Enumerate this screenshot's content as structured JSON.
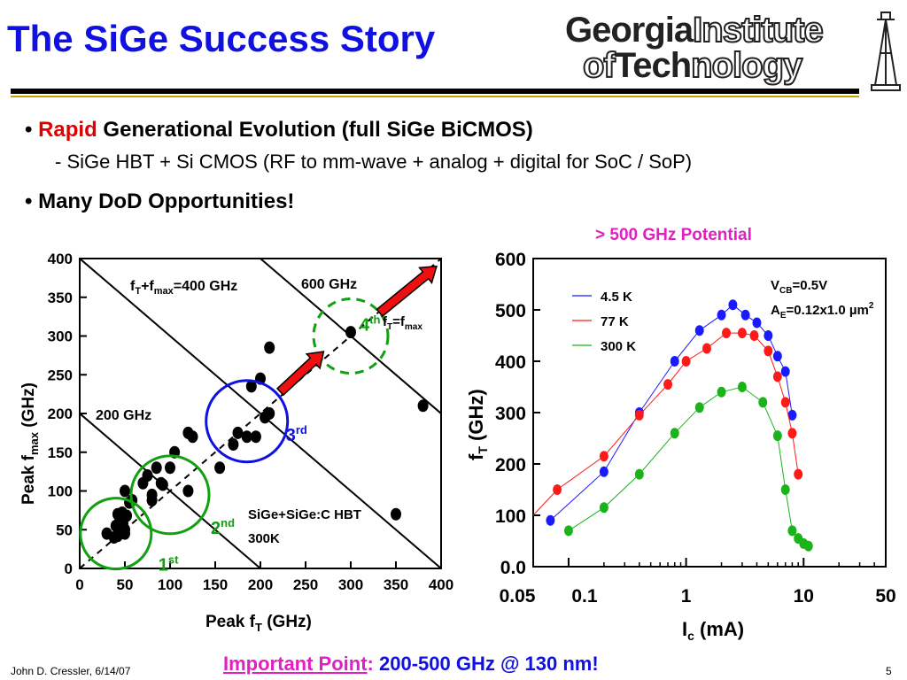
{
  "title": "The SiGe Success Story",
  "logo": {
    "line1_bold": "Georgia",
    "line1_outline": "Institute",
    "line2_outline_a": "of",
    "line2_bold": "Tech",
    "line2_outline_b": "nology"
  },
  "bullets": [
    {
      "marker": "•",
      "highlight": "Rapid",
      "text": "Generational Evolution (full SiGe BiCMOS)"
    },
    {
      "marker": "•",
      "text": "Many DoD Opportunities!"
    }
  ],
  "sub_bullet": "- SiGe HBT + Si CMOS (RF to mm-wave + analog + digital for SoC / SoP)",
  "potential_label": "> 500 GHz Potential",
  "important": {
    "lead": "Important Point",
    "colon": ":",
    "text": "200-500 GHz @ 130 nm!"
  },
  "footer": {
    "author": "John D. Cressler, 6/14/07",
    "page": "5"
  },
  "colors": {
    "title": "#1010e0",
    "highlight": "#e00000",
    "magenta": "#e020c0",
    "green": "#10a010",
    "blue": "#1010e0",
    "arrow": "#ee1010"
  },
  "chart_data": [
    {
      "type": "scatter",
      "xlabel": "Peak fT (GHz)",
      "ylabel": "Peak fmax (GHz)",
      "xlim": [
        0,
        400
      ],
      "ylim": [
        0,
        400
      ],
      "xticks": [
        0,
        50,
        100,
        150,
        200,
        250,
        300,
        350,
        400
      ],
      "yticks": [
        0,
        50,
        100,
        150,
        200,
        250,
        300,
        350,
        400
      ],
      "annotations": {
        "sum_line": "fT+fmax=400 GHz",
        "line_600": "600 GHz",
        "line_200": "200 GHz",
        "equality_pre": "fT=fmax",
        "device": "SiGe+SiGe:C HBT",
        "temp": "300K"
      },
      "generations": [
        {
          "num": "1",
          "sup": "st",
          "center": [
            40,
            45
          ]
        },
        {
          "num": "2",
          "sup": "nd",
          "center": [
            100,
            95
          ]
        },
        {
          "num": "3",
          "sup": "rd",
          "center": [
            185,
            190
          ]
        },
        {
          "num": "4",
          "sup": "th",
          "center": [
            300,
            300
          ]
        }
      ],
      "points": [
        [
          30,
          45
        ],
        [
          38,
          40
        ],
        [
          40,
          55
        ],
        [
          42,
          70
        ],
        [
          44,
          60
        ],
        [
          45,
          48
        ],
        [
          47,
          72
        ],
        [
          48,
          58
        ],
        [
          50,
          50
        ],
        [
          52,
          68
        ],
        [
          42,
          42
        ],
        [
          50,
          45
        ],
        [
          55,
          85
        ],
        [
          50,
          100
        ],
        [
          58,
          88
        ],
        [
          70,
          110
        ],
        [
          75,
          120
        ],
        [
          80,
          95
        ],
        [
          85,
          130
        ],
        [
          80,
          88
        ],
        [
          92,
          108
        ],
        [
          90,
          110
        ],
        [
          100,
          130
        ],
        [
          120,
          175
        ],
        [
          125,
          170
        ],
        [
          105,
          150
        ],
        [
          120,
          100
        ],
        [
          155,
          130
        ],
        [
          170,
          160
        ],
        [
          175,
          175
        ],
        [
          185,
          170
        ],
        [
          190,
          235
        ],
        [
          200,
          245
        ],
        [
          205,
          195
        ],
        [
          195,
          170
        ],
        [
          210,
          200
        ],
        [
          210,
          285
        ],
        [
          300,
          305
        ],
        [
          350,
          70
        ],
        [
          380,
          210
        ]
      ]
    },
    {
      "type": "line",
      "xlabel": "Ic (mA)",
      "ylabel": "fT (GHz)",
      "xscale": "log",
      "xlim": [
        0.05,
        50
      ],
      "ylim": [
        0,
        600
      ],
      "xticks": [
        "0.05",
        "0.1",
        "1",
        "10",
        "50"
      ],
      "yticks": [
        "0.0",
        "100",
        "200",
        "300",
        "400",
        "500",
        "600"
      ],
      "conditions": {
        "vcb": "VCB=0.5V",
        "ae": "AE=0.12x1.0 µm2"
      },
      "series": [
        {
          "name": "4.5 K",
          "color": "#1a1aff",
          "x": [
            0.07,
            0.2,
            0.4,
            0.8,
            1.3,
            2.0,
            2.5,
            3.2,
            4.0,
            5.0,
            6.0,
            7.0,
            8.0
          ],
          "y": [
            90,
            185,
            300,
            400,
            460,
            490,
            510,
            490,
            475,
            450,
            410,
            380,
            295
          ]
        },
        {
          "name": "77 K",
          "color": "#ff1a1a",
          "x": [
            0.08,
            0.2,
            0.4,
            0.7,
            1.0,
            1.5,
            2.2,
            3.0,
            3.8,
            5.0,
            6.0,
            7.0,
            8.0,
            9.0
          ],
          "y": [
            150,
            215,
            295,
            355,
            400,
            425,
            455,
            455,
            450,
            420,
            370,
            320,
            260,
            180
          ]
        },
        {
          "name": "300 K",
          "color": "#1ab41a",
          "x": [
            0.1,
            0.2,
            0.4,
            0.8,
            1.3,
            2.0,
            3.0,
            4.5,
            6.0,
            7.0,
            8.0,
            9.0,
            10.0,
            11.0
          ],
          "y": [
            70,
            115,
            180,
            260,
            310,
            340,
            350,
            320,
            255,
            150,
            70,
            55,
            45,
            40
          ]
        }
      ]
    }
  ]
}
